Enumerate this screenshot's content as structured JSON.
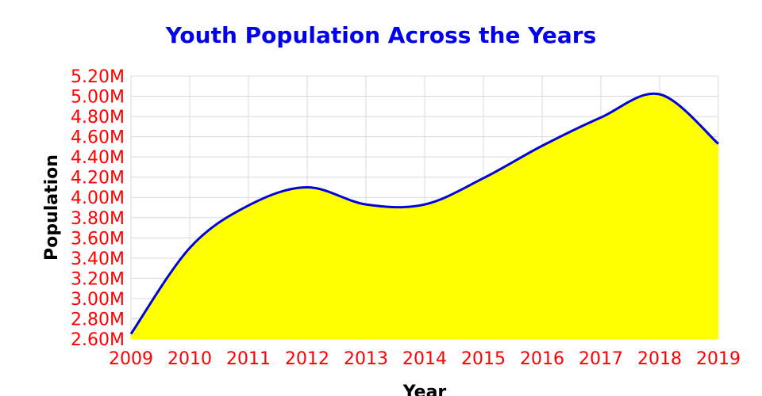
{
  "chart_data": {
    "type": "area",
    "title": "Youth Population Across the Years",
    "xlabel": "Year",
    "ylabel": "Population",
    "x": [
      2009,
      2010,
      2011,
      2012,
      2013,
      2014,
      2015,
      2016,
      2017,
      2018,
      2019
    ],
    "series": [
      {
        "values": [
          2.65,
          3.5,
          3.92,
          4.1,
          3.93,
          3.93,
          4.19,
          4.51,
          4.79,
          5.02,
          4.53
        ]
      }
    ],
    "unit_suffix": "M",
    "ylim": [
      2.6,
      5.2
    ],
    "xlim": [
      2009,
      2019
    ],
    "y_ticks": [
      "2.60M",
      "2.80M",
      "3.00M",
      "3.20M",
      "3.40M",
      "3.60M",
      "3.80M",
      "4.00M",
      "4.20M",
      "4.40M",
      "4.60M",
      "4.80M",
      "5.00M",
      "5.20M"
    ],
    "x_ticks": [
      "2009",
      "2010",
      "2011",
      "2012",
      "2013",
      "2014",
      "2015",
      "2016",
      "2017",
      "2018",
      "2019"
    ],
    "grid": true,
    "colors": {
      "title": "#0000ee",
      "tick": "#ff0000",
      "axis_label": "#000000",
      "fill": "#ffff00",
      "line": "#0000dd",
      "grid": "#d9d9d9"
    }
  }
}
